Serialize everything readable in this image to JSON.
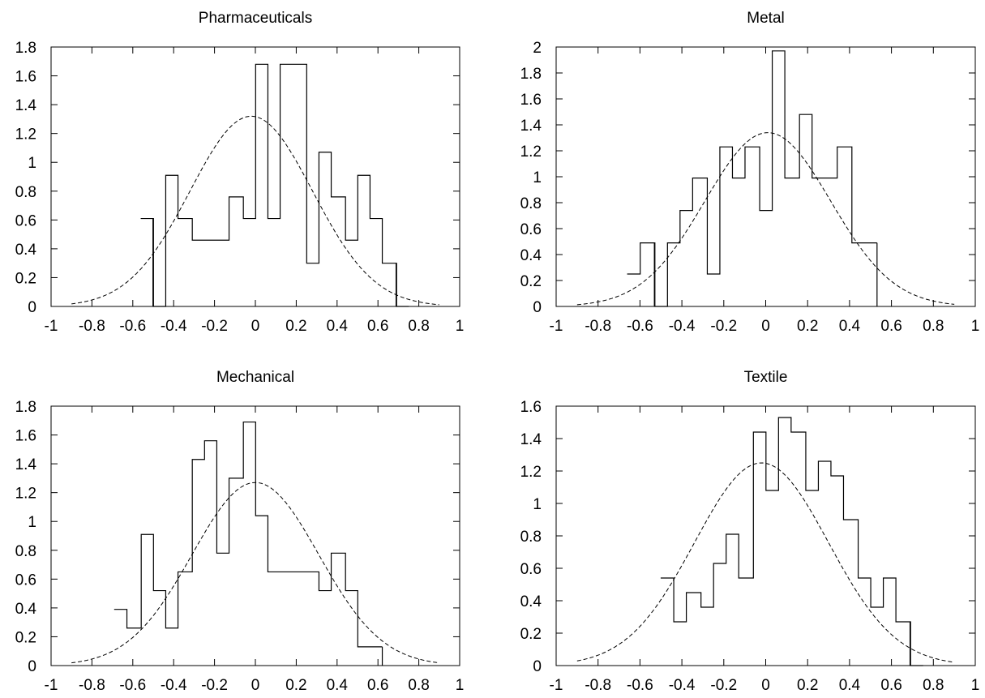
{
  "chart_data": [
    {
      "type": "step-histogram",
      "title": "Pharmaceuticals",
      "xlim": [
        -1,
        1
      ],
      "ylim": [
        0,
        1.8
      ],
      "xticks": [
        "-1",
        "-0.8",
        "-0.6",
        "-0.4",
        "-0.2",
        "0",
        "0.2",
        "0.4",
        "0.6",
        "0.8",
        "1"
      ],
      "yticks": [
        "0",
        "0.2",
        "0.4",
        "0.6",
        "0.8",
        "1",
        "1.2",
        "1.4",
        "1.6",
        "1.8"
      ],
      "bin_width": 0.0625,
      "histogram": [
        {
          "x": -0.53,
          "y": 0.61
        },
        {
          "x": -0.47,
          "y": 0.0
        },
        {
          "x": -0.41,
          "y": 0.91
        },
        {
          "x": -0.34,
          "y": 0.61
        },
        {
          "x": -0.28,
          "y": 0.46
        },
        {
          "x": -0.22,
          "y": 0.46
        },
        {
          "x": -0.16,
          "y": 0.46
        },
        {
          "x": -0.09,
          "y": 0.76
        },
        {
          "x": -0.03,
          "y": 0.61
        },
        {
          "x": 0.03,
          "y": 1.68
        },
        {
          "x": 0.09,
          "y": 0.61
        },
        {
          "x": 0.16,
          "y": 1.68
        },
        {
          "x": 0.22,
          "y": 1.68
        },
        {
          "x": 0.28,
          "y": 0.3
        },
        {
          "x": 0.34,
          "y": 1.07
        },
        {
          "x": 0.41,
          "y": 0.76
        },
        {
          "x": 0.47,
          "y": 0.46
        },
        {
          "x": 0.53,
          "y": 0.91
        },
        {
          "x": 0.59,
          "y": 0.61
        },
        {
          "x": 0.66,
          "y": 0.3
        },
        {
          "x": 0.72,
          "y": 0.0
        }
      ],
      "curve": {
        "mean": -0.02,
        "sd": 0.3,
        "peak": 1.32,
        "x_range": [
          -0.9,
          0.9
        ]
      }
    },
    {
      "type": "step-histogram",
      "title": "Metal",
      "xlim": [
        -1,
        1
      ],
      "ylim": [
        0,
        2
      ],
      "xticks": [
        "-1",
        "-0.8",
        "-0.6",
        "-0.4",
        "-0.2",
        "0",
        "0.2",
        "0.4",
        "0.6",
        "0.8",
        "1"
      ],
      "yticks": [
        "0",
        "0.2",
        "0.4",
        "0.6",
        "0.8",
        "1",
        "1.2",
        "1.4",
        "1.6",
        "1.8",
        "2"
      ],
      "bin_width": 0.0625,
      "histogram": [
        {
          "x": -0.63,
          "y": 0.25
        },
        {
          "x": -0.56,
          "y": 0.49
        },
        {
          "x": -0.5,
          "y": 0.0
        },
        {
          "x": -0.44,
          "y": 0.49
        },
        {
          "x": -0.38,
          "y": 0.74
        },
        {
          "x": -0.31,
          "y": 0.99
        },
        {
          "x": -0.25,
          "y": 0.25
        },
        {
          "x": -0.19,
          "y": 1.23
        },
        {
          "x": -0.13,
          "y": 0.99
        },
        {
          "x": -0.06,
          "y": 1.23
        },
        {
          "x": 0.0,
          "y": 0.74
        },
        {
          "x": 0.06,
          "y": 1.97
        },
        {
          "x": 0.13,
          "y": 0.99
        },
        {
          "x": 0.19,
          "y": 1.48
        },
        {
          "x": 0.25,
          "y": 0.99
        },
        {
          "x": 0.31,
          "y": 0.99
        },
        {
          "x": 0.38,
          "y": 1.23
        },
        {
          "x": 0.44,
          "y": 0.49
        },
        {
          "x": 0.5,
          "y": 0.49
        }
      ],
      "curve": {
        "mean": 0.01,
        "sd": 0.3,
        "peak": 1.34,
        "x_range": [
          -0.9,
          0.9
        ]
      }
    },
    {
      "type": "step-histogram",
      "title": "Mechanical",
      "xlim": [
        -1,
        1
      ],
      "ylim": [
        0,
        1.8
      ],
      "xticks": [
        "-1",
        "-0.8",
        "-0.6",
        "-0.4",
        "-0.2",
        "0",
        "0.2",
        "0.4",
        "0.6",
        "0.8",
        "1"
      ],
      "yticks": [
        "0",
        "0.2",
        "0.4",
        "0.6",
        "0.8",
        "1",
        "1.2",
        "1.4",
        "1.6",
        "1.8"
      ],
      "bin_width": 0.0625,
      "histogram": [
        {
          "x": -0.66,
          "y": 0.39
        },
        {
          "x": -0.59,
          "y": 0.26
        },
        {
          "x": -0.53,
          "y": 0.91
        },
        {
          "x": -0.47,
          "y": 0.52
        },
        {
          "x": -0.41,
          "y": 0.26
        },
        {
          "x": -0.34,
          "y": 0.65
        },
        {
          "x": -0.28,
          "y": 1.43
        },
        {
          "x": -0.22,
          "y": 1.56
        },
        {
          "x": -0.16,
          "y": 0.78
        },
        {
          "x": -0.09,
          "y": 1.3
        },
        {
          "x": -0.03,
          "y": 1.69
        },
        {
          "x": 0.03,
          "y": 1.04
        },
        {
          "x": 0.09,
          "y": 0.65
        },
        {
          "x": 0.16,
          "y": 0.65
        },
        {
          "x": 0.22,
          "y": 0.65
        },
        {
          "x": 0.28,
          "y": 0.65
        },
        {
          "x": 0.34,
          "y": 0.52
        },
        {
          "x": 0.41,
          "y": 0.78
        },
        {
          "x": 0.47,
          "y": 0.52
        },
        {
          "x": 0.53,
          "y": 0.13
        },
        {
          "x": 0.59,
          "y": 0.13
        }
      ],
      "curve": {
        "mean": 0.0,
        "sd": 0.31,
        "peak": 1.27,
        "x_range": [
          -0.9,
          0.9
        ]
      }
    },
    {
      "type": "step-histogram",
      "title": "Textile",
      "xlim": [
        -1,
        1
      ],
      "ylim": [
        0,
        1.6
      ],
      "xticks": [
        "-1",
        "-0.8",
        "-0.6",
        "-0.4",
        "-0.2",
        "0",
        "0.2",
        "0.4",
        "0.6",
        "0.8",
        "1"
      ],
      "yticks": [
        "0",
        "0.2",
        "0.4",
        "0.6",
        "0.8",
        "1",
        "1.2",
        "1.4",
        "1.6"
      ],
      "bin_width": 0.0625,
      "histogram": [
        {
          "x": -0.47,
          "y": 0.54
        },
        {
          "x": -0.41,
          "y": 0.27
        },
        {
          "x": -0.34,
          "y": 0.45
        },
        {
          "x": -0.28,
          "y": 0.36
        },
        {
          "x": -0.22,
          "y": 0.63
        },
        {
          "x": -0.16,
          "y": 0.81
        },
        {
          "x": -0.09,
          "y": 0.54
        },
        {
          "x": -0.03,
          "y": 1.44
        },
        {
          "x": 0.03,
          "y": 1.08
        },
        {
          "x": 0.09,
          "y": 1.53
        },
        {
          "x": 0.16,
          "y": 1.44
        },
        {
          "x": 0.22,
          "y": 1.08
        },
        {
          "x": 0.28,
          "y": 1.26
        },
        {
          "x": 0.34,
          "y": 1.17
        },
        {
          "x": 0.41,
          "y": 0.9
        },
        {
          "x": 0.47,
          "y": 0.54
        },
        {
          "x": 0.53,
          "y": 0.36
        },
        {
          "x": 0.59,
          "y": 0.54
        },
        {
          "x": 0.66,
          "y": 0.27
        },
        {
          "x": 0.72,
          "y": 0.0
        }
      ],
      "curve": {
        "mean": -0.02,
        "sd": 0.32,
        "peak": 1.25,
        "x_range": [
          -0.9,
          0.9
        ]
      }
    }
  ]
}
